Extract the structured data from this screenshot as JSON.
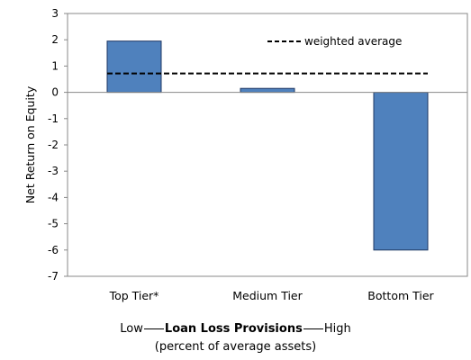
{
  "chart_data": {
    "type": "bar",
    "categories": [
      "Top Tier*",
      "Medium Tier",
      "Bottom Tier"
    ],
    "values": [
      1.95,
      0.15,
      -6.0
    ],
    "weighted_average": 0.72,
    "ylabel": "Net Return on Equity",
    "ylim": [
      -7,
      3
    ],
    "yticks": [
      3,
      2,
      1,
      0,
      -1,
      -2,
      -3,
      -4,
      -5,
      -6,
      -7
    ],
    "legend": {
      "label": "weighted average",
      "placement": "top-right"
    },
    "bar_color": "#4F81BD",
    "bar_edge_color": "#1F3864",
    "grid": false
  },
  "caption": {
    "low": "Low",
    "title": "Loan Loss Provisions",
    "high": "High",
    "subtitle": "(percent of average assets)"
  }
}
